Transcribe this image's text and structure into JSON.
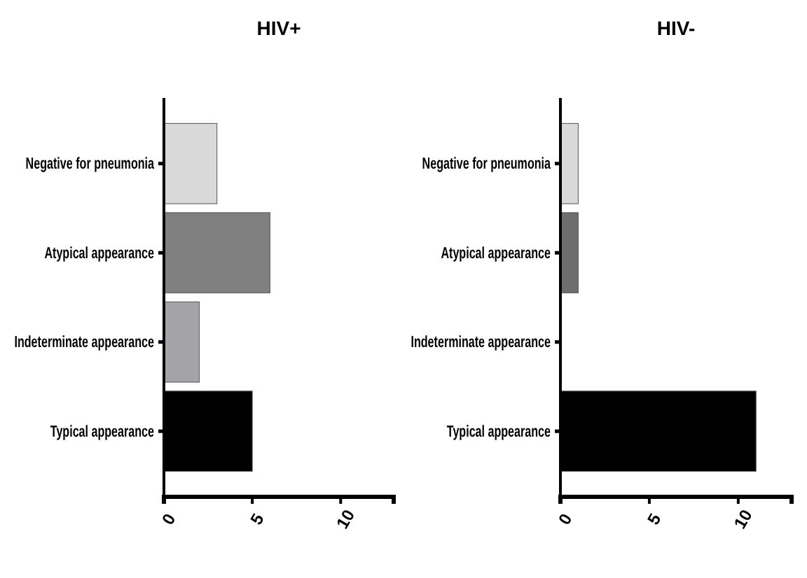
{
  "chart_data": [
    {
      "type": "bar",
      "orientation": "horizontal",
      "title": "HIV+",
      "categories": [
        "Negative for pneumonia",
        "Atypical appearance",
        "Indeterminate appearance",
        "Typical appearance"
      ],
      "values": [
        3,
        6,
        2,
        5
      ],
      "colors": [
        "#d9d9d9",
        "#808080",
        "#a4a4a8",
        "#000000"
      ],
      "xlim": [
        0,
        13
      ],
      "xticks": [
        0,
        5,
        10
      ],
      "grid": false
    },
    {
      "type": "bar",
      "orientation": "horizontal",
      "title": "HIV-",
      "categories": [
        "Negative for pneumonia",
        "Atypical appearance",
        "Indeterminate appearance",
        "Typical appearance"
      ],
      "values": [
        1,
        1,
        0,
        11
      ],
      "colors": [
        "#d9d9d9",
        "#6e6e6e",
        "#a4a4a8",
        "#000000"
      ],
      "xlim": [
        0,
        13
      ],
      "xticks": [
        0,
        5,
        10
      ],
      "grid": false
    }
  ]
}
